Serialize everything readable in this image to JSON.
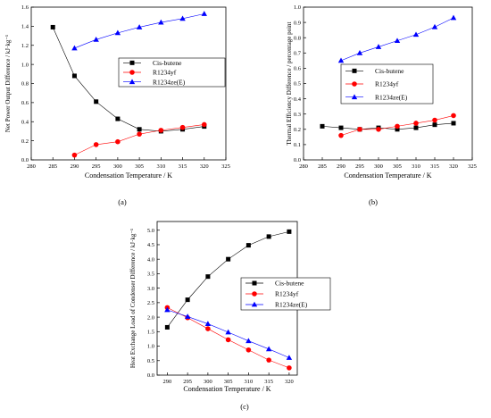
{
  "colors": {
    "Cis-butene": "#000000",
    "R1234yf": "#ff0000",
    "R1234ze(E)": "#0000ff"
  },
  "chart_data": [
    {
      "type": "line",
      "panel_label": "(a)",
      "xlabel": "Condensation Temperature / K",
      "ylabel": "Net Power Output Difference / kJ·kg⁻¹",
      "xlim": [
        280,
        325
      ],
      "ylim": [
        0,
        1.6
      ],
      "xticks": [
        280,
        285,
        290,
        295,
        300,
        305,
        310,
        315,
        320,
        325
      ],
      "yticks": [
        0.0,
        0.2,
        0.4,
        0.6,
        0.8,
        1.0,
        1.2,
        1.4,
        1.6
      ],
      "legend_position": "middle-right",
      "series": [
        {
          "name": "Cis-butene",
          "marker": "square",
          "x": [
            285,
            290,
            295,
            300,
            305,
            310,
            315,
            320
          ],
          "y": [
            1.39,
            0.88,
            0.61,
            0.43,
            0.32,
            0.3,
            0.32,
            0.35
          ]
        },
        {
          "name": "R1234yf",
          "marker": "circle",
          "x": [
            290,
            295,
            300,
            305,
            310,
            315,
            320
          ],
          "y": [
            0.05,
            0.16,
            0.19,
            0.27,
            0.31,
            0.34,
            0.37
          ]
        },
        {
          "name": "R1234ze(E)",
          "marker": "triangle",
          "x": [
            290,
            295,
            300,
            305,
            310,
            315,
            320
          ],
          "y": [
            1.17,
            1.26,
            1.33,
            1.39,
            1.44,
            1.48,
            1.53
          ]
        }
      ]
    },
    {
      "type": "line",
      "panel_label": "(b)",
      "xlabel": "Condensation Temperature / K",
      "ylabel": "Thermal Efficiency Difference / percentage point",
      "xlim": [
        280,
        325
      ],
      "ylim": [
        0,
        1.0
      ],
      "xticks": [
        280,
        285,
        290,
        295,
        300,
        305,
        310,
        315,
        320,
        325
      ],
      "yticks": [
        0.0,
        0.1,
        0.2,
        0.3,
        0.4,
        0.5,
        0.6,
        0.7,
        0.8,
        0.9,
        1.0
      ],
      "legend_position": "middle-right",
      "series": [
        {
          "name": "Cis-butene",
          "marker": "square",
          "x": [
            285,
            290,
            295,
            300,
            305,
            310,
            315,
            320
          ],
          "y": [
            0.22,
            0.21,
            0.2,
            0.21,
            0.2,
            0.21,
            0.23,
            0.24
          ]
        },
        {
          "name": "R1234yf",
          "marker": "circle",
          "x": [
            290,
            295,
            300,
            305,
            310,
            315,
            320
          ],
          "y": [
            0.16,
            0.2,
            0.2,
            0.22,
            0.24,
            0.26,
            0.29
          ]
        },
        {
          "name": "R1234ze(E)",
          "marker": "triangle",
          "x": [
            290,
            295,
            300,
            305,
            310,
            315,
            320
          ],
          "y": [
            0.65,
            0.7,
            0.74,
            0.78,
            0.82,
            0.87,
            0.93
          ]
        }
      ]
    },
    {
      "type": "line",
      "panel_label": "(c)",
      "xlabel": "Condensation Temperature / K",
      "ylabel": "Heat Exchange Load of Condenser Difference / kJ·kg⁻¹",
      "xlim": [
        287.5,
        322
      ],
      "ylim": [
        0,
        5.3
      ],
      "xticks": [
        290,
        295,
        300,
        305,
        310,
        315,
        320
      ],
      "yticks": [
        0.0,
        0.5,
        1.0,
        1.5,
        2.0,
        2.5,
        3.0,
        3.5,
        4.0,
        4.5,
        5.0
      ],
      "legend_position": "middle-right",
      "series": [
        {
          "name": "Cis-butene",
          "marker": "square",
          "x": [
            290,
            295,
            300,
            305,
            310,
            315,
            320
          ],
          "y": [
            1.65,
            2.6,
            3.4,
            4.0,
            4.48,
            4.78,
            4.95
          ]
        },
        {
          "name": "R1234yf",
          "marker": "circle",
          "x": [
            290,
            295,
            300,
            305,
            310,
            315,
            320
          ],
          "y": [
            2.33,
            1.98,
            1.6,
            1.22,
            0.87,
            0.52,
            0.25
          ]
        },
        {
          "name": "R1234ze(E)",
          "marker": "triangle",
          "x": [
            290,
            295,
            300,
            305,
            310,
            315,
            320
          ],
          "y": [
            2.25,
            2.02,
            1.77,
            1.48,
            1.18,
            0.9,
            0.6
          ]
        }
      ]
    }
  ]
}
